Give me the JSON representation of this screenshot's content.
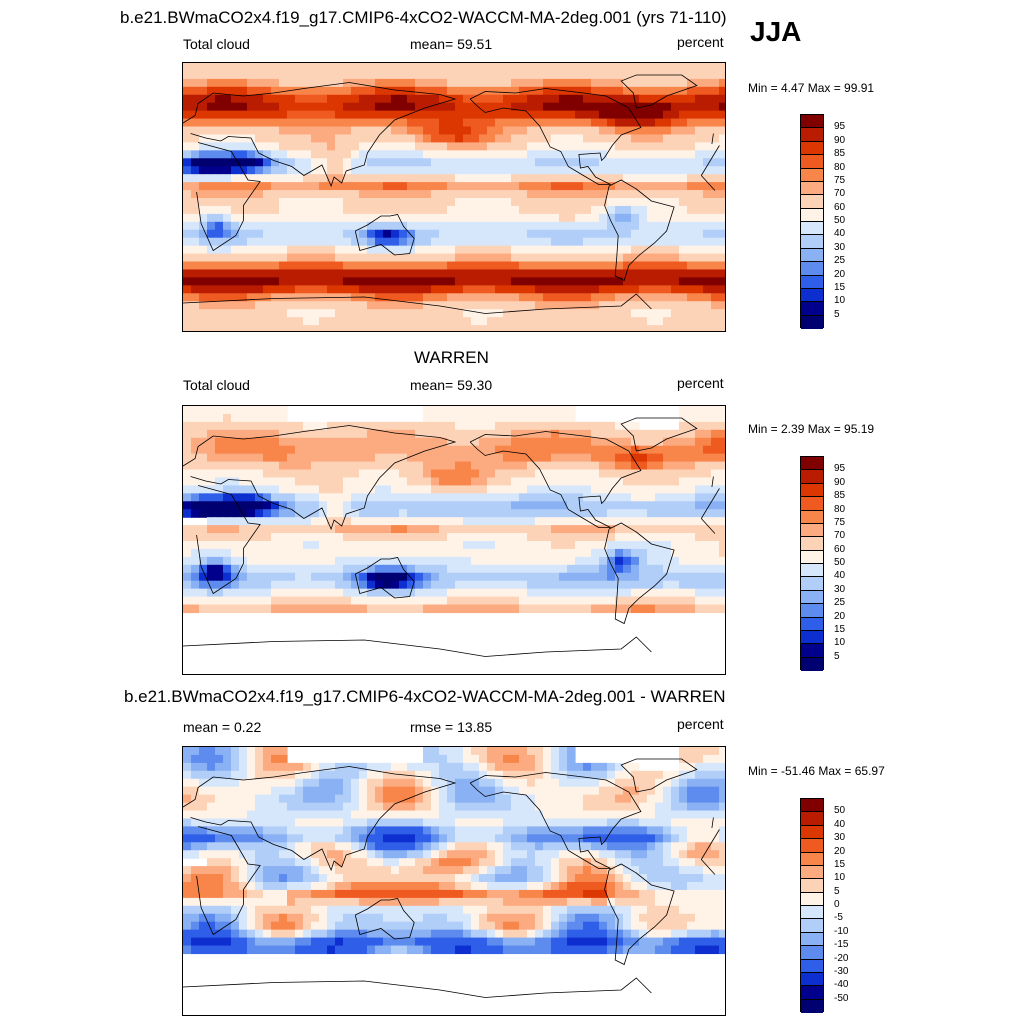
{
  "season": "JJA",
  "panels": [
    {
      "id": "model",
      "title": "b.e21.BWmaCO2x4.f19_g17.CMIP6-4xCO2-WACCM-MA-2deg.001 (yrs 71-110)",
      "left_label": "Total cloud",
      "center_label": "mean=  59.51",
      "units": "percent",
      "minmax": "Min =   4.47 Max =  99.91",
      "colorbar": {
        "levels": [
          "95",
          "90",
          "85",
          "80",
          "75",
          "70",
          "60",
          "50",
          "40",
          "30",
          "25",
          "20",
          "15",
          "10",
          "5"
        ],
        "colors": [
          "#800000",
          "#b91c00",
          "#dc3700",
          "#ef5a20",
          "#f8854a",
          "#fcaa80",
          "#fdd3b8",
          "#fff3e8",
          "#d6e6fb",
          "#b1cef8",
          "#8ab1f3",
          "#5e8cee",
          "#2f5ee8",
          "#0e2fd0",
          "#00008c",
          "#000070"
        ]
      },
      "field": "clim"
    },
    {
      "id": "obs",
      "title": "WARREN",
      "left_label": "Total cloud",
      "center_label": "mean=  59.30",
      "units": "percent",
      "minmax": "Min =   2.39 Max =  95.19",
      "colorbar": {
        "levels": [
          "95",
          "90",
          "85",
          "80",
          "75",
          "70",
          "60",
          "50",
          "40",
          "30",
          "25",
          "20",
          "15",
          "10",
          "5"
        ],
        "colors": [
          "#800000",
          "#b91c00",
          "#dc3700",
          "#ef5a20",
          "#f8854a",
          "#fcaa80",
          "#fdd3b8",
          "#fff3e8",
          "#d6e6fb",
          "#b1cef8",
          "#8ab1f3",
          "#5e8cee",
          "#2f5ee8",
          "#0e2fd0",
          "#00008c",
          "#000070"
        ]
      },
      "field": "obs"
    },
    {
      "id": "diff",
      "title": "b.e21.BWmaCO2x4.f19_g17.CMIP6-4xCO2-WACCM-MA-2deg.001 - WARREN",
      "left_label": "mean =   0.22",
      "center_label": "rmse =  13.85",
      "units": "percent",
      "minmax": "Min = -51.46 Max =  65.97",
      "colorbar": {
        "levels": [
          "50",
          "40",
          "30",
          "20",
          "15",
          "10",
          "5",
          "0",
          "-5",
          "-10",
          "-15",
          "-20",
          "-30",
          "-40",
          "-50"
        ],
        "colors": [
          "#800000",
          "#b91c00",
          "#dc3700",
          "#ef5a20",
          "#f8854a",
          "#fcaa80",
          "#fdd3b8",
          "#fff3e8",
          "#d6e6fb",
          "#b1cef8",
          "#8ab1f3",
          "#5e8cee",
          "#2f5ee8",
          "#0e2fd0",
          "#00008c",
          "#000070"
        ]
      },
      "field": "diff"
    }
  ],
  "chart_data": {
    "type": "heatmap",
    "title": "Total cloud (JJA)",
    "units": "percent",
    "panels": [
      {
        "name": "b.e21.BWmaCO2x4.f19_g17.CMIP6-4xCO2-WACCM-MA-2deg.001 (yrs 71-110)",
        "mean": 59.51,
        "min": 4.47,
        "max": 99.91,
        "contour_levels": [
          5,
          10,
          15,
          20,
          25,
          30,
          40,
          50,
          60,
          70,
          75,
          80,
          85,
          90,
          95
        ]
      },
      {
        "name": "WARREN",
        "mean": 59.3,
        "min": 2.39,
        "max": 95.19,
        "contour_levels": [
          5,
          10,
          15,
          20,
          25,
          30,
          40,
          50,
          60,
          70,
          75,
          80,
          85,
          90,
          95
        ]
      },
      {
        "name": "b.e21.BWmaCO2x4.f19_g17.CMIP6-4xCO2-WACCM-MA-2deg.001 - WARREN",
        "mean": 0.22,
        "rmse": 13.85,
        "min": -51.46,
        "max": 65.97,
        "contour_levels": [
          -50,
          -40,
          -30,
          -20,
          -15,
          -10,
          -5,
          0,
          5,
          10,
          15,
          20,
          30,
          40,
          50
        ]
      }
    ],
    "xlim": [
      0,
      360
    ],
    "ylim": [
      -90,
      90
    ],
    "legend": "right"
  }
}
